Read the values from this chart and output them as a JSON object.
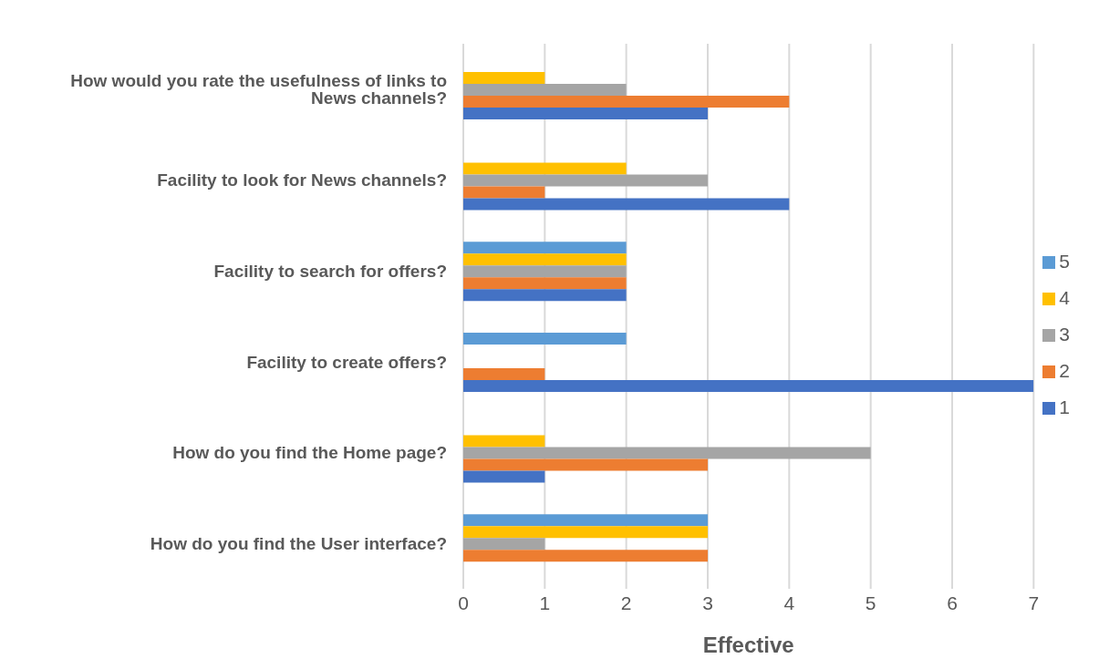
{
  "chart_data": {
    "type": "bar",
    "orientation": "horizontal",
    "xlabel": "Effective",
    "categories": [
      "How would you rate the usefulness of links to News channels?",
      "Facility to look for News channels?",
      "Facility to search for offers?",
      "Facility to create offers?",
      "How do you find the Home page?",
      "How do you find the User interface?"
    ],
    "series": [
      {
        "name": "1",
        "color": "#4472c4",
        "values": [
          3,
          4,
          2,
          7,
          1,
          null
        ]
      },
      {
        "name": "2",
        "color": "#ed7d31",
        "values": [
          4,
          1,
          2,
          1,
          3,
          3
        ]
      },
      {
        "name": "3",
        "color": "#a5a5a5",
        "values": [
          2,
          3,
          2,
          null,
          5,
          1
        ]
      },
      {
        "name": "4",
        "color": "#ffc000",
        "values": [
          1,
          2,
          2,
          null,
          1,
          3
        ]
      },
      {
        "name": "5",
        "color": "#5b9bd5",
        "values": [
          null,
          null,
          2,
          2,
          null,
          3
        ]
      }
    ],
    "xlim": [
      0,
      7
    ],
    "xticks": [
      0,
      1,
      2,
      3,
      4,
      5,
      6,
      7
    ],
    "grid": "x",
    "legend": "right"
  }
}
